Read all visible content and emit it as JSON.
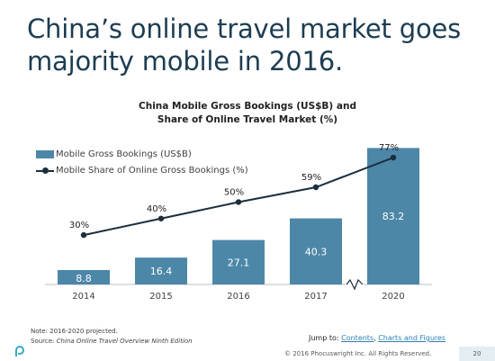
{
  "title": "China’s online travel market goes majority mobile in 2016.",
  "chart_data": {
    "type": "bar",
    "title_line1": "China Mobile Gross Bookings (US$B) and",
    "title_line2": "Share of Online Travel Market (%)",
    "categories": [
      "2014",
      "2015",
      "2016",
      "2017",
      "2020"
    ],
    "series": [
      {
        "name": "Mobile Gross Bookings (US$B)",
        "type": "bar",
        "values": [
          8.8,
          16.4,
          27.1,
          40.3,
          83.2
        ],
        "labels": [
          "8.8",
          "16.4",
          "27.1",
          "40.3",
          "83.2"
        ]
      },
      {
        "name": "Mobile Share of Online Gross Bookings (%)",
        "type": "line",
        "values": [
          30,
          40,
          50,
          59,
          77
        ],
        "labels": [
          "30%",
          "40%",
          "50%",
          "59%",
          "77%"
        ]
      }
    ],
    "ylim": [
      0,
      90
    ],
    "axis_break_between": [
      "2017",
      "2020"
    ],
    "legend_position": "top-left",
    "bar_color": "#4d87a8",
    "line_color": "#1c2e3d"
  },
  "footer": {
    "note_line1": "Note: 2016-2020 projected.",
    "source_label": "Source: ",
    "source_text": "China Online Travel Overview Ninth Edition",
    "jump_label": "Jump to: ",
    "jump_link1": "Contents",
    "jump_sep": ", ",
    "jump_link2": "Charts and Figures",
    "copyright": "© 2016 Phocuswright Inc. All Rights Reserved.",
    "page_number": "20"
  },
  "colors": {
    "title": "#1c3d52",
    "link": "#2e7fb0",
    "accent": "#4d87a8"
  }
}
